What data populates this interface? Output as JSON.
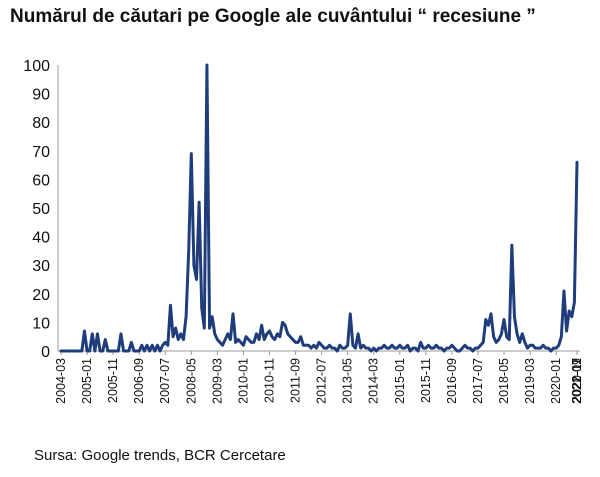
{
  "chart_data": {
    "type": "line",
    "title": "Numărul de căutari pe Google ale cuvântului “ recesiune ”",
    "source": "Sursa: Google trends, BCR Cercetare",
    "xlabel": "",
    "ylabel": "",
    "ylim": [
      0,
      100
    ],
    "yticks": [
      0,
      10,
      20,
      30,
      40,
      50,
      60,
      70,
      80,
      90,
      100
    ],
    "xtick_labels": [
      "2004-03",
      "2005-01",
      "2005-11",
      "2006-09",
      "2007-07",
      "2008-05",
      "2009-03",
      "2010-01",
      "2010-11",
      "2011-09",
      "2012-07",
      "2013-05",
      "2014-03",
      "2015-01",
      "2015-11",
      "2016-09",
      "2017-07",
      "2018-05",
      "2019-03",
      "2020-01",
      "2020-11",
      "2021-09",
      "2022-07"
    ],
    "x_start": "2004-03",
    "grid": false,
    "line_color": "#1f3d7a",
    "series": [
      {
        "values": [
          0,
          0,
          0,
          0,
          0,
          0,
          0,
          0,
          0,
          7,
          0,
          0,
          6,
          0,
          6,
          0,
          0,
          4,
          0,
          0,
          0,
          0,
          0,
          6,
          0,
          0,
          0,
          3,
          0,
          0,
          0,
          2,
          0,
          2,
          0,
          2,
          0,
          2,
          0,
          2,
          3,
          2,
          16,
          5,
          8,
          4,
          6,
          4,
          12,
          35,
          69,
          30,
          25,
          52,
          15,
          8,
          100,
          8,
          12,
          6,
          4,
          3,
          2,
          4,
          6,
          4,
          13,
          3,
          4,
          3,
          2,
          5,
          4,
          3,
          3,
          6,
          4,
          9,
          4,
          6,
          7,
          5,
          4,
          6,
          5,
          10,
          9,
          6,
          5,
          4,
          3,
          3,
          5,
          2,
          2,
          2,
          1,
          2,
          1,
          3,
          2,
          1,
          1,
          2,
          1,
          1,
          0,
          2,
          1,
          1,
          2,
          13,
          2,
          1,
          6,
          1,
          2,
          1,
          1,
          0,
          1,
          0,
          1,
          1,
          2,
          1,
          1,
          2,
          1,
          1,
          2,
          1,
          1,
          2,
          0,
          1,
          1,
          0,
          3,
          1,
          1,
          2,
          1,
          1,
          2,
          1,
          1,
          0,
          1,
          1,
          2,
          1,
          0,
          0,
          1,
          2,
          1,
          1,
          0,
          1,
          1,
          2,
          3,
          11,
          9,
          13,
          5,
          3,
          4,
          6,
          11,
          5,
          4,
          37,
          12,
          6,
          3,
          6,
          3,
          1,
          2,
          2,
          1,
          1,
          1,
          2,
          1,
          1,
          0,
          1,
          1,
          2,
          5,
          21,
          7,
          14,
          12,
          17,
          66
        ]
      }
    ]
  }
}
